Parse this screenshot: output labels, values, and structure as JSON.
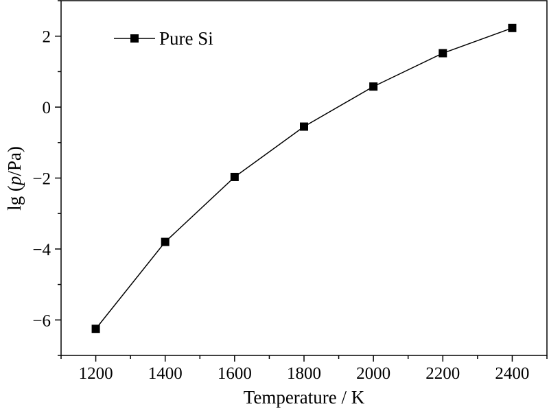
{
  "chart_data": {
    "type": "line",
    "title": "",
    "xlabel": "Temperature / K",
    "ylabel": {
      "prefix": "lg (",
      "italic": "p",
      "suffix": "/Pa)"
    },
    "xlim": [
      1100,
      2500
    ],
    "ylim": [
      -7,
      3
    ],
    "xticks": [
      1200,
      1400,
      1600,
      1800,
      2000,
      2200,
      2400
    ],
    "xtick_labels": [
      "1200",
      "1400",
      "1600",
      "1800",
      "2000",
      "2200",
      "2400"
    ],
    "yticks": [
      -6,
      -4,
      -2,
      0,
      2
    ],
    "ytick_labels": [
      "−6",
      "−4",
      "−2",
      "0",
      "2"
    ],
    "grid": false,
    "legend_position": "top-left",
    "series": [
      {
        "name": "Pure Si",
        "marker": "square",
        "color": "#000000",
        "x": [
          1200,
          1400,
          1600,
          1800,
          2000,
          2200,
          2400
        ],
        "y": [
          -6.25,
          -3.8,
          -1.97,
          -0.55,
          0.58,
          1.52,
          2.23
        ]
      }
    ]
  }
}
